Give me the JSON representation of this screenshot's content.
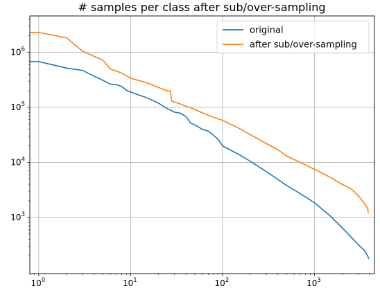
{
  "chart_data": {
    "type": "line",
    "title": "# samples per class after sub/over-sampling",
    "xlabel": "",
    "ylabel": "",
    "xscale": "log",
    "yscale": "log",
    "xlim": [
      0.8,
      4500
    ],
    "ylim": [
      95,
      4600000
    ],
    "grid": true,
    "legend_position": "top-right",
    "x_ticks": [
      {
        "value": 1,
        "base": "10",
        "exp": "0"
      },
      {
        "value": 10,
        "base": "10",
        "exp": "1"
      },
      {
        "value": 100,
        "base": "10",
        "exp": "2"
      },
      {
        "value": 1000,
        "base": "10",
        "exp": "3"
      }
    ],
    "y_ticks": [
      {
        "value": 1000,
        "base": "10",
        "exp": "3"
      },
      {
        "value": 10000,
        "base": "10",
        "exp": "4"
      },
      {
        "value": 100000,
        "base": "10",
        "exp": "5"
      },
      {
        "value": 1000000,
        "base": "10",
        "exp": "6"
      }
    ],
    "series": [
      {
        "name": "original",
        "color": "#1f77b4",
        "points": [
          [
            0.7,
            680000
          ],
          [
            1,
            680000
          ],
          [
            2,
            520000
          ],
          [
            3,
            470000
          ],
          [
            4,
            370000
          ],
          [
            5,
            310000
          ],
          [
            6,
            265000
          ],
          [
            7,
            260000
          ],
          [
            8,
            240000
          ],
          [
            9,
            205000
          ],
          [
            10,
            190000
          ],
          [
            12,
            170000
          ],
          [
            15,
            150000
          ],
          [
            20,
            120000
          ],
          [
            25,
            95000
          ],
          [
            30,
            82000
          ],
          [
            35,
            78000
          ],
          [
            40,
            68000
          ],
          [
            45,
            52000
          ],
          [
            50,
            48000
          ],
          [
            60,
            40000
          ],
          [
            70,
            37000
          ],
          [
            80,
            31000
          ],
          [
            90,
            26000
          ],
          [
            100,
            20000
          ],
          [
            120,
            17000
          ],
          [
            150,
            14000
          ],
          [
            200,
            10500
          ],
          [
            300,
            6800
          ],
          [
            500,
            3800
          ],
          [
            700,
            2700
          ],
          [
            1000,
            1850
          ],
          [
            1500,
            1050
          ],
          [
            2000,
            650
          ],
          [
            2500,
            440
          ],
          [
            3000,
            320
          ],
          [
            3500,
            250
          ],
          [
            3800,
            200
          ],
          [
            3900,
            175
          ]
        ]
      },
      {
        "name": "after sub/over-sampling",
        "color": "#ff7f0e",
        "points": [
          [
            0.7,
            2300000
          ],
          [
            1,
            2300000
          ],
          [
            2,
            1850000
          ],
          [
            3,
            1050000
          ],
          [
            4,
            850000
          ],
          [
            5,
            720000
          ],
          [
            6,
            500000
          ],
          [
            8,
            420000
          ],
          [
            10,
            340000
          ],
          [
            15,
            280000
          ],
          [
            20,
            230000
          ],
          [
            25,
            200000
          ],
          [
            27,
            200000
          ],
          [
            28,
            130000
          ],
          [
            35,
            115000
          ],
          [
            40,
            105000
          ],
          [
            50,
            92000
          ],
          [
            60,
            80000
          ],
          [
            70,
            72000
          ],
          [
            80,
            66000
          ],
          [
            100,
            58000
          ],
          [
            150,
            42000
          ],
          [
            200,
            32000
          ],
          [
            300,
            22000
          ],
          [
            400,
            17000
          ],
          [
            500,
            13000
          ],
          [
            700,
            10000
          ],
          [
            1000,
            7500
          ],
          [
            1500,
            5300
          ],
          [
            2000,
            4000
          ],
          [
            2500,
            3300
          ],
          [
            3000,
            2500
          ],
          [
            3500,
            1800
          ],
          [
            3800,
            1450
          ],
          [
            3850,
            1200
          ]
        ]
      }
    ]
  }
}
